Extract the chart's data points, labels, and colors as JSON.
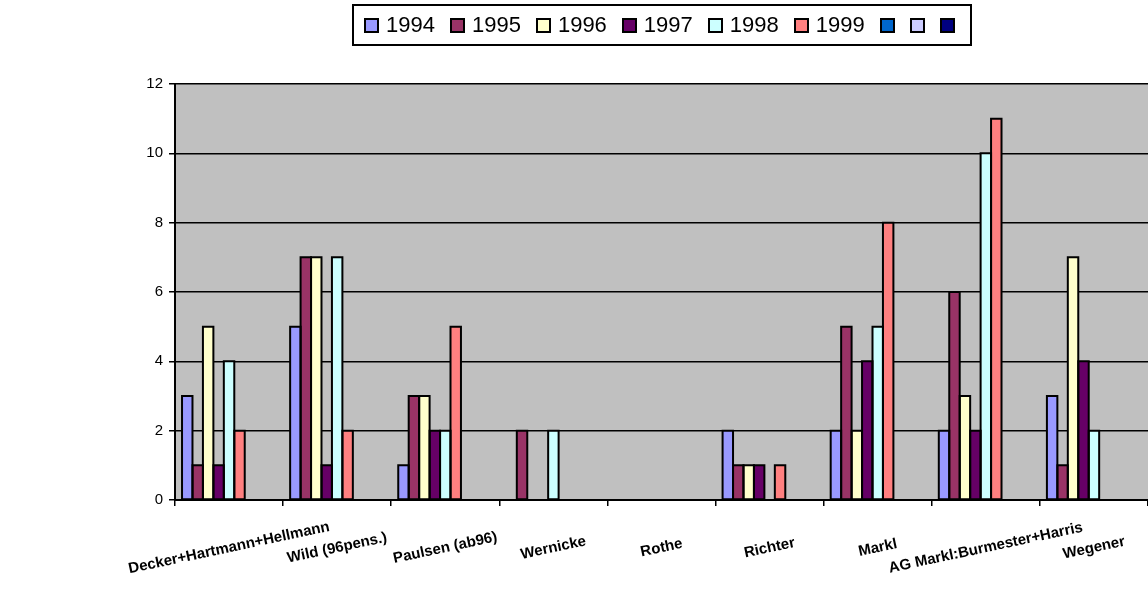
{
  "chart_data": {
    "type": "bar",
    "categories": [
      "Decker+Hartmann+Hellmann",
      "Wild (96pens.)",
      "Paulsen (ab96)",
      "Wernicke",
      "Rothe",
      "Richter",
      "Markl",
      "AG Markl:Burmester+Harris",
      "Wegener"
    ],
    "series": [
      {
        "name": "1994",
        "color": "#9999ff",
        "values": [
          3,
          5,
          1,
          null,
          null,
          2,
          2,
          2,
          3
        ]
      },
      {
        "name": "1995",
        "color": "#993366",
        "values": [
          1,
          7,
          3,
          2,
          null,
          1,
          5,
          6,
          1
        ]
      },
      {
        "name": "1996",
        "color": "#ffffcc",
        "values": [
          5,
          7,
          3,
          null,
          null,
          1,
          2,
          3,
          7
        ]
      },
      {
        "name": "1997",
        "color": "#660066",
        "values": [
          1,
          1,
          2,
          null,
          null,
          1,
          4,
          2,
          4
        ]
      },
      {
        "name": "1998",
        "color": "#ccffff",
        "values": [
          4,
          7,
          2,
          2,
          null,
          null,
          5,
          10,
          2
        ]
      },
      {
        "name": "1999",
        "color": "#ff8080",
        "values": [
          2,
          2,
          5,
          null,
          null,
          1,
          8,
          11,
          null
        ]
      },
      {
        "color": "#0066cc",
        "values": [
          null,
          null,
          null,
          null,
          null,
          null,
          null,
          null,
          null
        ]
      },
      {
        "color": "#ccccff",
        "values": [
          null,
          null,
          null,
          null,
          null,
          null,
          null,
          null,
          null
        ]
      },
      {
        "color": "#000080",
        "values": [
          null,
          null,
          null,
          null,
          null,
          null,
          null,
          null,
          null
        ]
      }
    ],
    "ylim": [
      0,
      12
    ],
    "yticks": [
      0,
      2,
      4,
      6,
      8,
      10,
      12
    ],
    "grid": "y",
    "legend": "top"
  }
}
